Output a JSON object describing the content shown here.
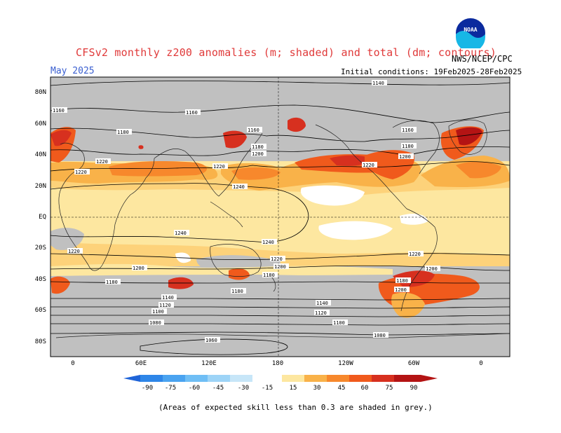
{
  "header": {
    "title": "CFSv2 monthly z200 anomalies (m; shaded) and total (dm; contours)",
    "valid_month": "May 2025",
    "initial_conditions": "Initial conditions: 19Feb2025-28Feb2025",
    "agency": "NWS/NCEP/CPC",
    "logo_text": "NOAA"
  },
  "map": {
    "lat_labels": [
      "80N",
      "60N",
      "40N",
      "20N",
      "EQ",
      "20S",
      "40S",
      "60S",
      "80S"
    ],
    "lon_labels": [
      "0",
      "60E",
      "120E",
      "180",
      "120W",
      "60W",
      "0"
    ],
    "contour_labels": [
      "1140",
      "1160",
      "1160",
      "1180",
      "1160",
      "1180",
      "1180",
      "1200",
      "1200",
      "1220",
      "1220",
      "1220",
      "1240",
      "1240",
      "1240",
      "1220",
      "1220",
      "1200",
      "1180",
      "1220",
      "1200",
      "1220",
      "1200",
      "1180",
      "1180",
      "1180",
      "1140",
      "1140",
      "1120",
      "1120",
      "1100",
      "1100",
      "1080",
      "1080",
      "1060",
      "1200",
      "1160"
    ],
    "colors": {
      "land_grey": "#bebebe",
      "skill_grey": "#c0c0c0",
      "light_yellow": "#fde7a0",
      "yellow": "#fdd27a",
      "orange_light": "#f9b249",
      "orange": "#f7882c",
      "orange_dark": "#f05a1c",
      "red": "#d7301f",
      "dark_red": "#b41414"
    }
  },
  "colorbar": {
    "labels": [
      "-90",
      "-75",
      "-60",
      "-45",
      "-30",
      "-15",
      "15",
      "30",
      "45",
      "60",
      "75",
      "90"
    ],
    "colors": [
      "#1f64d8",
      "#2e86e8",
      "#4aa3f0",
      "#6fbef5",
      "#9dd4f7",
      "#c7e6f8",
      "#ffffff",
      "#fde7a0",
      "#f9b249",
      "#f7882c",
      "#f05a1c",
      "#d7301f",
      "#b41414"
    ]
  },
  "footnote": "(Areas of expected skill less than 0.3 are shaded in grey.)"
}
